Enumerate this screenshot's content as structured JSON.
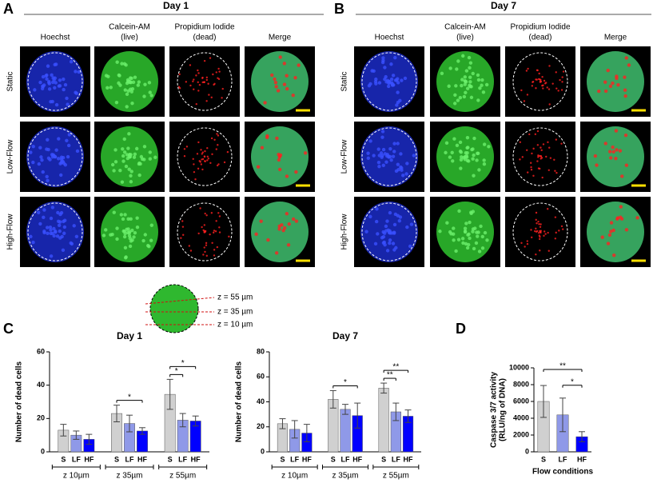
{
  "panel_labels": [
    "A",
    "B",
    "C",
    "D"
  ],
  "panel_a": {
    "title": "Day 1",
    "columns": [
      [
        "Hoechst"
      ],
      [
        "Calcein-AM",
        "(live)"
      ],
      [
        "Propidium Iodide",
        "(dead)"
      ],
      [
        "Merge"
      ]
    ],
    "rows": [
      "Static",
      "Low-Flow",
      "High-Flow"
    ]
  },
  "panel_b": {
    "title": "Day 7",
    "columns": [
      [
        "Hoechst"
      ],
      [
        "Calcein-AM",
        "(live)"
      ],
      [
        "Propidium Iodide",
        "(dead)"
      ],
      [
        "Merge"
      ]
    ],
    "rows": [
      "Static",
      "Low-Flow",
      "High-Flow"
    ]
  },
  "schematic": {
    "labels": [
      "z = 55 µm",
      "z = 35 µm",
      "z = 10 µm"
    ]
  },
  "chart_data": [
    {
      "type": "bar",
      "title": "Day 1",
      "y_label": [
        "Number of dead cells"
      ],
      "ylim": [
        0,
        60
      ],
      "yticks": [
        0,
        20,
        40,
        60
      ],
      "categories": [
        "z 10µm",
        "z 35µm",
        "z 55µm"
      ],
      "series": [
        {
          "name": "S",
          "color": "#d0d0d0",
          "values": [
            13,
            23,
            34.5
          ],
          "errors": [
            3.5,
            5,
            9
          ]
        },
        {
          "name": "LF",
          "color": "#8f99e8",
          "values": [
            10,
            17,
            19
          ],
          "errors": [
            2.5,
            5,
            4
          ]
        },
        {
          "name": "HF",
          "color": "#0000ff",
          "values": [
            7.5,
            12.5,
            18.5
          ],
          "errors": [
            3,
            2,
            3
          ]
        }
      ],
      "brackets": [
        {
          "group": "z 35µm",
          "between": [
            "S",
            "HF"
          ],
          "label": "*"
        },
        {
          "group": "z 55µm",
          "between": [
            "S",
            "LF"
          ],
          "label": "*"
        },
        {
          "group": "z 55µm",
          "between": [
            "S",
            "HF"
          ],
          "label": "*"
        }
      ]
    },
    {
      "type": "bar",
      "title": "Day 7",
      "y_label": [
        "Number of dead cells"
      ],
      "ylim": [
        0,
        80
      ],
      "yticks": [
        0,
        20,
        40,
        60,
        80
      ],
      "categories": [
        "z 10µm",
        "z 35µm",
        "z 55µm"
      ],
      "series": [
        {
          "name": "S",
          "color": "#d0d0d0",
          "values": [
            22.5,
            42,
            51
          ],
          "errors": [
            4,
            7,
            4
          ]
        },
        {
          "name": "LF",
          "color": "#8f99e8",
          "values": [
            18,
            34,
            32
          ],
          "errors": [
            7,
            4,
            7
          ]
        },
        {
          "name": "HF",
          "color": "#0000ff",
          "values": [
            15,
            29,
            28.5
          ],
          "errors": [
            7,
            10,
            5
          ]
        }
      ],
      "brackets": [
        {
          "group": "z 35µm",
          "between": [
            "S",
            "HF"
          ],
          "label": "*"
        },
        {
          "group": "z 55µm",
          "between": [
            "S",
            "LF"
          ],
          "label": "**"
        },
        {
          "group": "z 55µm",
          "between": [
            "S",
            "HF"
          ],
          "label": "**"
        }
      ]
    },
    {
      "type": "bar",
      "y_label": [
        "Caspase 3/7 activity",
        "(RLU/ng of DNA)"
      ],
      "x_label": "Flow conditions",
      "ylim": [
        0,
        10000
      ],
      "yticks": [
        0,
        2000,
        4000,
        6000,
        8000,
        10000
      ],
      "categories": [
        "S",
        "LF",
        "HF"
      ],
      "values": [
        6000,
        4400,
        1800
      ],
      "errors": [
        1900,
        2000,
        600
      ],
      "colors": [
        "#d0d0d0",
        "#8f99e8",
        "#0000ff"
      ],
      "brackets": [
        {
          "between": [
            "S",
            "HF"
          ],
          "label": "**"
        },
        {
          "between": [
            "LF",
            "HF"
          ],
          "label": "*"
        }
      ]
    }
  ]
}
